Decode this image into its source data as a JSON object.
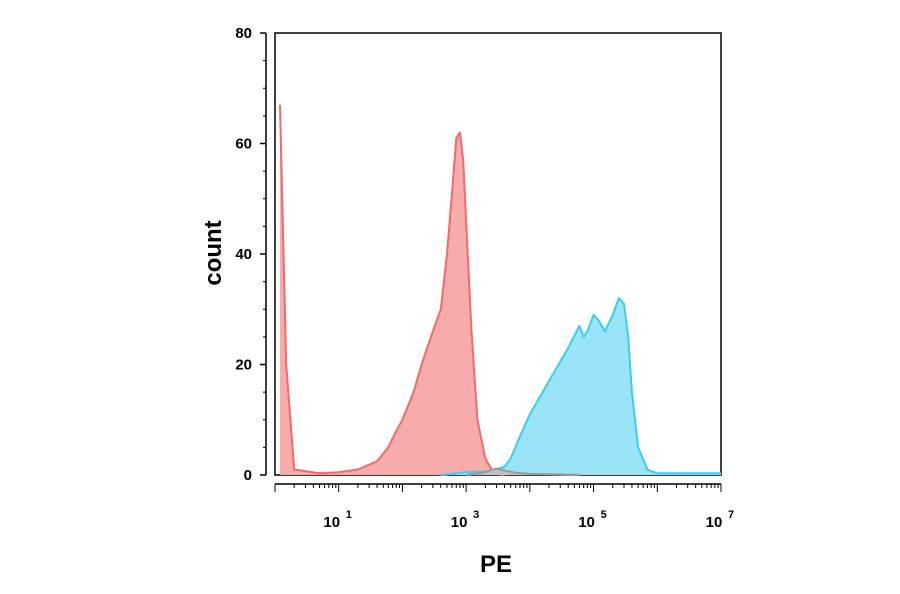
{
  "chart_data": {
    "type": "area",
    "xlabel": "PE",
    "ylabel": "count",
    "x_scale": "log",
    "xlim": [
      1,
      10000000
    ],
    "ylim": [
      0,
      80
    ],
    "y_ticks": [
      0,
      20,
      40,
      60,
      80
    ],
    "x_ticks": [
      {
        "base": "10",
        "exp": "1",
        "value": 10
      },
      {
        "base": "10",
        "exp": "3",
        "value": 1000
      },
      {
        "base": "10",
        "exp": "5",
        "value": 100000
      },
      {
        "base": "10",
        "exp": "7",
        "value": 10000000
      }
    ],
    "series": [
      {
        "color": "#f26a6a",
        "fill": "#f7a7a7",
        "x": [
          1.2,
          1.5,
          2,
          5,
          10,
          20,
          40,
          60,
          80,
          100,
          150,
          200,
          300,
          400,
          500,
          600,
          700,
          800,
          900,
          1000,
          1200,
          1500,
          2000,
          2500,
          3000,
          4000
        ],
        "y": [
          67,
          20,
          1,
          0.3,
          0.5,
          1,
          2.5,
          5,
          8,
          10,
          15,
          20,
          26,
          30,
          40,
          51,
          61,
          62,
          57,
          46,
          27,
          10,
          3,
          1,
          0.3,
          0
        ]
      },
      {
        "color": "#3ecbf0",
        "fill": "#93e4f7",
        "x": [
          400,
          1000,
          2000,
          3000,
          4000,
          5000,
          7000,
          10000,
          20000,
          40000,
          60000,
          70000,
          80000,
          100000,
          120000,
          150000,
          200000,
          250000,
          300000,
          350000,
          400000,
          500000,
          700000,
          1000000,
          2000000,
          10000000
        ],
        "y": [
          0,
          0.5,
          0.6,
          1,
          1.5,
          3,
          7,
          11,
          17,
          23,
          27,
          25,
          26,
          29,
          28,
          26,
          29,
          32,
          31,
          25,
          15,
          5,
          1,
          0.3,
          0.3,
          0.3
        ]
      },
      {
        "color": "#9a9a9a",
        "fill": "#c0c0c0",
        "x": [
          1000,
          2000,
          3000,
          4000,
          6000,
          10000,
          30000,
          60000
        ],
        "y": [
          0,
          0.5,
          1.2,
          0.8,
          0.4,
          0.2,
          0.1,
          0
        ]
      }
    ]
  }
}
